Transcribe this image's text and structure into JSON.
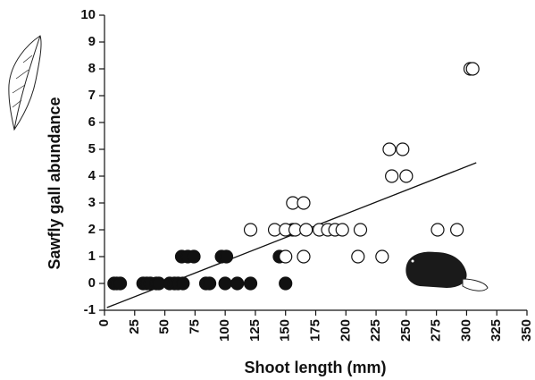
{
  "chart_data": {
    "type": "scatter",
    "x_label": "Shoot length (mm)",
    "y_label": "Sawfly gall abundance",
    "xlim": [
      0,
      350
    ],
    "xticks": [
      0,
      25,
      50,
      75,
      100,
      125,
      150,
      175,
      200,
      225,
      250,
      275,
      300,
      325,
      350
    ],
    "ylim": [
      -1,
      10
    ],
    "yticks": [
      -1,
      0,
      1,
      2,
      3,
      4,
      5,
      6,
      7,
      8,
      9,
      10
    ],
    "series": [
      {
        "color": "#111111",
        "fill": "#111111",
        "x": [
          8,
          10,
          13,
          32,
          35,
          38,
          43,
          45,
          54,
          58,
          61,
          65,
          84,
          87,
          100,
          110,
          121,
          150,
          64,
          69,
          74,
          97,
          101,
          145,
          156
        ],
        "values": [
          0,
          0,
          0,
          0,
          0,
          0,
          0,
          0,
          0,
          0,
          0,
          0,
          0,
          0,
          0,
          0,
          0,
          0,
          1,
          1,
          1,
          1,
          1,
          1,
          2
        ]
      },
      {
        "color": "#111111",
        "fill": "#ffffff",
        "x": [
          150,
          165,
          210,
          230,
          121,
          141,
          150,
          158,
          167,
          178,
          185,
          191,
          197,
          212,
          276,
          292,
          156,
          165,
          238,
          250,
          236,
          247,
          303,
          305
        ],
        "values": [
          1,
          1,
          1,
          1,
          2,
          2,
          2,
          2,
          2,
          2,
          2,
          2,
          2,
          2,
          2,
          2,
          3,
          3,
          4,
          4,
          5,
          5,
          8,
          8
        ]
      }
    ],
    "trend_line": {
      "color": "#111111",
      "x": [
        2,
        308
      ],
      "values": [
        -0.9,
        4.5
      ]
    }
  }
}
